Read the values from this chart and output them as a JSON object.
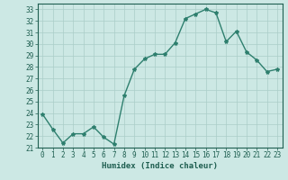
{
  "x": [
    0,
    1,
    2,
    3,
    4,
    5,
    6,
    7,
    8,
    9,
    10,
    11,
    12,
    13,
    14,
    15,
    16,
    17,
    18,
    19,
    20,
    21,
    22,
    23
  ],
  "y": [
    23.9,
    22.6,
    21.4,
    22.2,
    22.2,
    22.8,
    21.9,
    21.3,
    25.5,
    27.8,
    28.7,
    29.1,
    29.1,
    30.1,
    32.2,
    32.6,
    33.0,
    32.7,
    30.2,
    31.1,
    29.3,
    28.6,
    27.6,
    27.8
  ],
  "line_color": "#2e7f6e",
  "marker": "*",
  "marker_size": 3,
  "bg_color": "#cce8e4",
  "grid_color": "#aacdc8",
  "xlabel": "Humidex (Indice chaleur)",
  "ylim": [
    21,
    33.5
  ],
  "xlim": [
    -0.5,
    23.5
  ],
  "yticks": [
    21,
    22,
    23,
    24,
    25,
    26,
    27,
    28,
    29,
    30,
    31,
    32,
    33
  ],
  "xticks": [
    0,
    1,
    2,
    3,
    4,
    5,
    6,
    7,
    8,
    9,
    10,
    11,
    12,
    13,
    14,
    15,
    16,
    17,
    18,
    19,
    20,
    21,
    22,
    23
  ],
  "tick_color": "#1e5e50",
  "label_fontsize": 6.5,
  "tick_fontsize": 5.5,
  "spine_color": "#1e5e50"
}
